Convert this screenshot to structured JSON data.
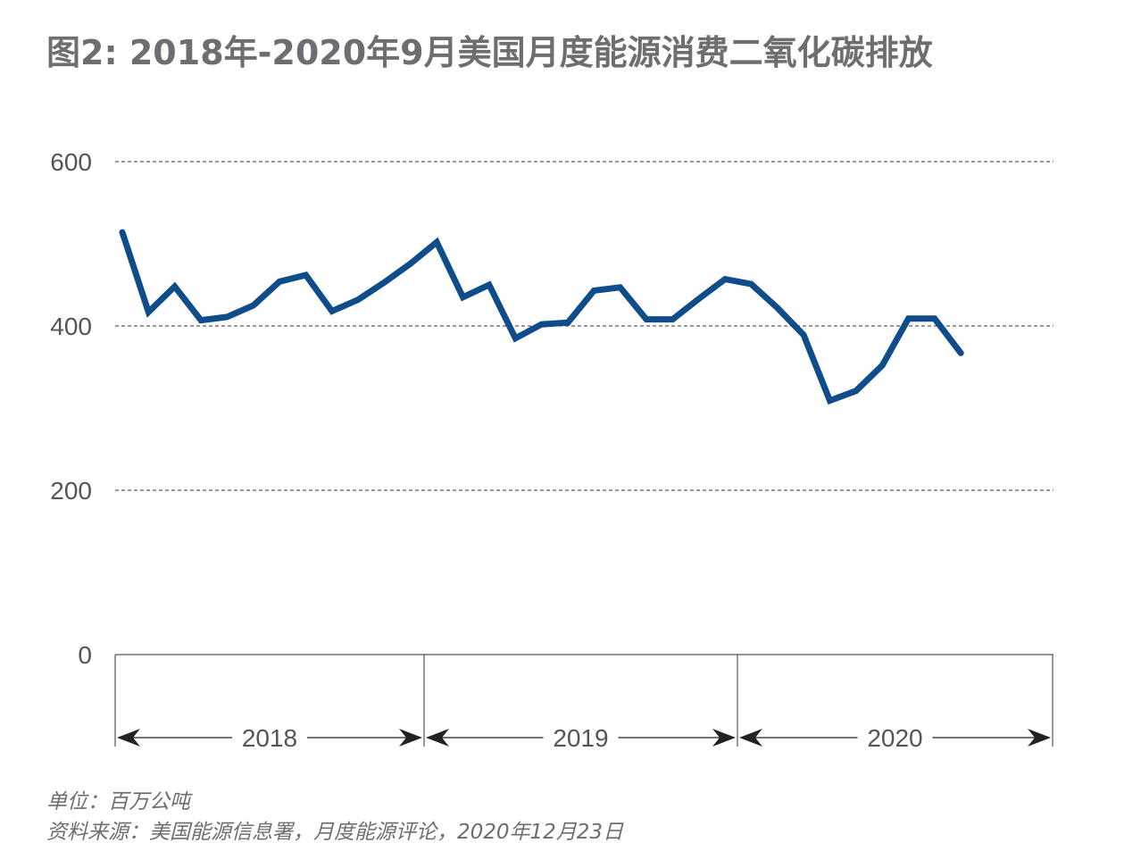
{
  "title": "图2: 2018年-2020年9月美国月度能源消费二氧化碳排放",
  "chart_data": {
    "type": "line",
    "title": "图2: 2018年-2020年9月美国月度能源消费二氧化碳排放",
    "xlabel": "",
    "ylabel": "",
    "ylim": [
      0,
      600
    ],
    "yticks": [
      "0",
      "200",
      "400",
      "600"
    ],
    "grid": true,
    "year_groups": [
      {
        "label": "2018",
        "months": 12
      },
      {
        "label": "2019",
        "months": 12
      },
      {
        "label": "2020",
        "months": 9
      }
    ],
    "series": [
      {
        "name": "CO2 emissions",
        "color": "#0f4c8a",
        "values": [
          514,
          417,
          448,
          407,
          411,
          425,
          454,
          462,
          418,
          432,
          453,
          476,
          502,
          435,
          450,
          385,
          402,
          404,
          443,
          447,
          408,
          408,
          433,
          457,
          451,
          422,
          389,
          309,
          321,
          352,
          409,
          409,
          367
        ]
      }
    ]
  },
  "footer": {
    "unit": "单位：百万公吨",
    "source": "资料来源：美国能源信息署，月度能源评论，2020年12月23日"
  }
}
